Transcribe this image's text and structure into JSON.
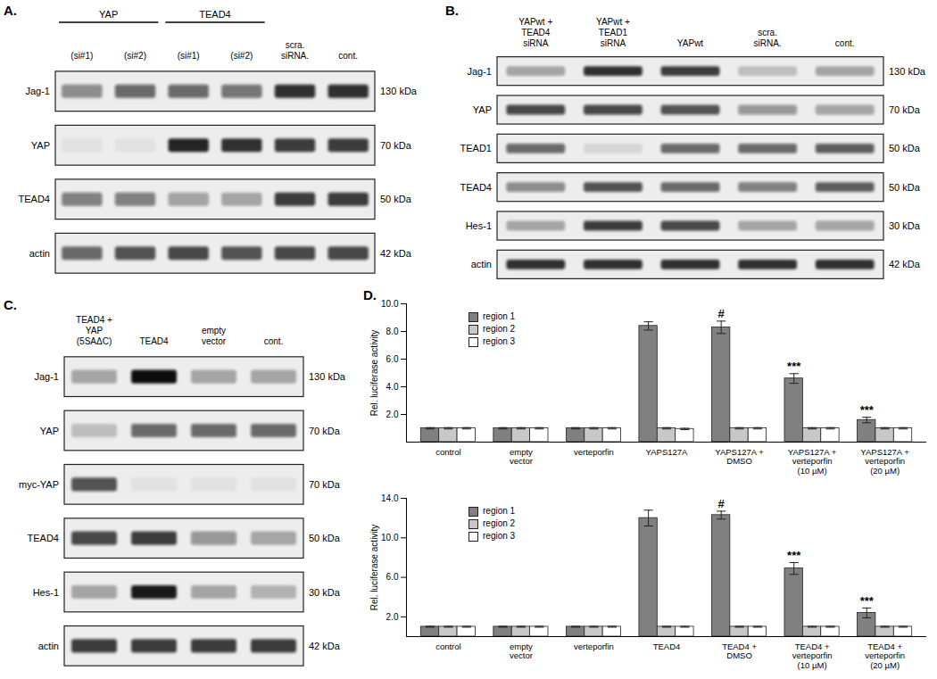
{
  "blots": [
    {
      "label": "A.",
      "groups": [
        {
          "text": "YAP",
          "lanes": [
            0,
            1
          ]
        },
        {
          "text": "TEAD4",
          "lanes": [
            2,
            3
          ]
        }
      ],
      "lanes": [
        "(si#1)",
        "(si#2)",
        "(si#1)",
        "(si#2)",
        "scra.\nsiRNA.",
        "cont."
      ],
      "rows": [
        {
          "name": "Jag-1",
          "size": "130 kDa",
          "intensity": [
            0.45,
            0.6,
            0.6,
            0.55,
            0.85,
            0.85
          ]
        },
        {
          "name": "YAP",
          "size": "70 kDa",
          "intensity": [
            0.05,
            0.05,
            0.9,
            0.85,
            0.8,
            0.8
          ]
        },
        {
          "name": "TEAD4",
          "size": "50 kDa",
          "intensity": [
            0.5,
            0.5,
            0.35,
            0.3,
            0.8,
            0.8
          ]
        },
        {
          "name": "actin",
          "size": "42 kDa",
          "intensity": [
            0.6,
            0.7,
            0.75,
            0.7,
            0.75,
            0.75
          ]
        }
      ]
    },
    {
      "label": "B.",
      "groups": [],
      "lanes": [
        "YAPwt +\nTEAD4\nsiRNA",
        "YAPwt +\nTEAD1\nsiRNA",
        "YAPwt",
        "scra.\nsiRNA.",
        "cont."
      ],
      "rows": [
        {
          "name": "Jag-1",
          "size": "130 kDa",
          "intensity": [
            0.3,
            0.85,
            0.8,
            0.2,
            0.3
          ]
        },
        {
          "name": "YAP",
          "size": "70 kDa",
          "intensity": [
            0.75,
            0.75,
            0.7,
            0.4,
            0.35
          ]
        },
        {
          "name": "TEAD1",
          "size": "50 kDa",
          "intensity": [
            0.6,
            0.1,
            0.6,
            0.6,
            0.65
          ]
        },
        {
          "name": "TEAD4",
          "size": "50 kDa",
          "intensity": [
            0.45,
            0.7,
            0.6,
            0.5,
            0.65
          ]
        },
        {
          "name": "Hes-1",
          "size": "30 kDa",
          "intensity": [
            0.3,
            0.8,
            0.75,
            0.3,
            0.35
          ]
        },
        {
          "name": "actin",
          "size": "42 kDa",
          "intensity": [
            0.85,
            0.85,
            0.85,
            0.85,
            0.85
          ]
        }
      ]
    },
    {
      "label": "C.",
      "groups": [],
      "lanes": [
        "TEAD4 +\nYAP\n(5SAΔC)",
        "TEAD4",
        "empty\nvector",
        "cont."
      ],
      "rows": [
        {
          "name": "Jag-1",
          "size": "130 kDa",
          "intensity": [
            0.3,
            1.0,
            0.3,
            0.3
          ]
        },
        {
          "name": "YAP",
          "size": "70 kDa",
          "intensity": [
            0.2,
            0.6,
            0.6,
            0.6
          ]
        },
        {
          "name": "myc-YAP",
          "size": "70 kDa",
          "intensity": [
            0.7,
            0.05,
            0.05,
            0.05
          ]
        },
        {
          "name": "TEAD4",
          "size": "50 kDa",
          "intensity": [
            0.75,
            0.8,
            0.4,
            0.3
          ]
        },
        {
          "name": "Hes-1",
          "size": "30 kDa",
          "intensity": [
            0.3,
            0.95,
            0.3,
            0.25
          ]
        },
        {
          "name": "actin",
          "size": "42 kDa",
          "intensity": [
            0.8,
            0.8,
            0.8,
            0.8
          ]
        }
      ]
    }
  ],
  "chart_data": [
    {
      "type": "bar",
      "title": "D.",
      "ylabel": "Rel. luciferase activity",
      "categories": [
        "control",
        "empty\nvector",
        "verteporfin",
        "YAPS127A",
        "YAPS127A +\nDMSO",
        "YAPS127A +\nverteporfin\n(10 µM)",
        "YAPS127A +\nverteporfin\n(20 µM)"
      ],
      "series": [
        {
          "name": "region 1",
          "color": "#808080",
          "values": [
            1,
            1,
            1,
            8.4,
            8.3,
            4.6,
            1.6
          ],
          "errors": [
            0.05,
            0.05,
            0.05,
            0.3,
            0.45,
            0.35,
            0.2
          ]
        },
        {
          "name": "region 2",
          "color": "#c8c8c8",
          "values": [
            1,
            1,
            1,
            1,
            1,
            1,
            1
          ],
          "errors": [
            0.05,
            0.05,
            0.05,
            0.05,
            0.05,
            0.05,
            0.05
          ]
        },
        {
          "name": "region 3",
          "color": "#ffffff",
          "values": [
            1,
            1,
            1,
            0.95,
            1,
            1,
            1
          ],
          "errors": [
            0.05,
            0.05,
            0.05,
            0.05,
            0.05,
            0.05,
            0.05
          ]
        }
      ],
      "ylim": [
        0,
        10
      ],
      "yticks": [
        {
          "value": 2,
          "label": "2.0"
        },
        {
          "value": 4,
          "label": "4.0"
        },
        {
          "value": 6,
          "label": "6.0"
        },
        {
          "value": 8,
          "label": "8.0"
        },
        {
          "value": 10,
          "label": "10.0"
        }
      ],
      "legend": "upper left",
      "annotations": [
        {
          "category": "YAPS127A +\nDMSO",
          "series": "region 1",
          "text": "#"
        },
        {
          "category": "YAPS127A +\nverteporfin\n(10 µM)",
          "series": "region 1",
          "text": "***"
        },
        {
          "category": "YAPS127A +\nverteporfin\n(20 µM)",
          "series": "region 1",
          "text": "***"
        }
      ]
    },
    {
      "type": "bar",
      "ylabel": "Rel. luciferase activity",
      "categories": [
        "control",
        "empty\nvector",
        "verteporfin",
        "TEAD4",
        "TEAD4 +\nDMSO",
        "TEAD4 +\nverteporfin\n(10 µM)",
        "TEAD4 +\nverteporfin\n(20 µM)"
      ],
      "series": [
        {
          "name": "region 1",
          "color": "#808080",
          "values": [
            1,
            1,
            1,
            12.0,
            12.3,
            6.9,
            2.4
          ],
          "errors": [
            0.05,
            0.05,
            0.05,
            0.8,
            0.4,
            0.6,
            0.5
          ]
        },
        {
          "name": "region 2",
          "color": "#c8c8c8",
          "values": [
            1,
            1,
            1,
            1,
            1,
            1,
            1
          ],
          "errors": [
            0.05,
            0.05,
            0.05,
            0.05,
            0.05,
            0.05,
            0.05
          ]
        },
        {
          "name": "region 3",
          "color": "#ffffff",
          "values": [
            1,
            1,
            1,
            1,
            1,
            1,
            1
          ],
          "errors": [
            0.05,
            0.05,
            0.05,
            0.05,
            0.05,
            0.05,
            0.05
          ]
        }
      ],
      "ylim": [
        0,
        14
      ],
      "yticks": [
        {
          "value": 2,
          "label": "2.0"
        },
        {
          "value": 6,
          "label": "6.0"
        },
        {
          "value": 10,
          "label": "10.0"
        },
        {
          "value": 14,
          "label": "14.0"
        }
      ],
      "legend": "upper left",
      "annotations": [
        {
          "category": "TEAD4 +\nDMSO",
          "series": "region 1",
          "text": "#"
        },
        {
          "category": "TEAD4 +\nverteporfin\n(10 µM)",
          "series": "region 1",
          "text": "***"
        },
        {
          "category": "TEAD4 +\nverteporfin\n(20 µM)",
          "series": "region 1",
          "text": "***"
        }
      ]
    }
  ]
}
